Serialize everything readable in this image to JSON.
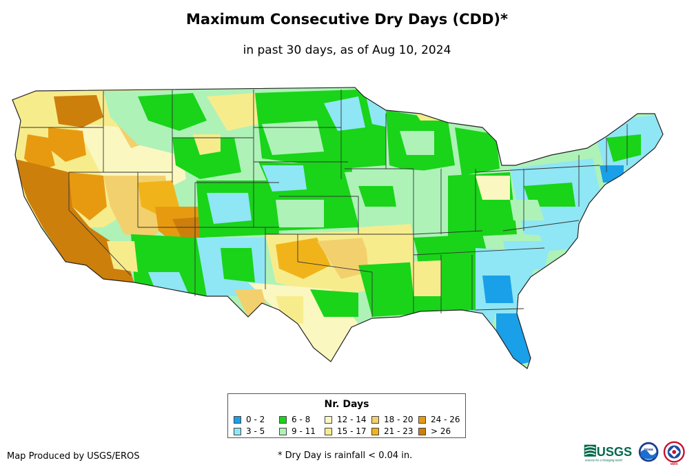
{
  "title": "Maximum Consecutive Dry Days (CDD)*",
  "subtitle": "in past 30 days, as of Aug 10, 2024",
  "legend": {
    "title": "Nr. Days",
    "items": [
      {
        "label": "0 - 2",
        "color": "#1aa0e8"
      },
      {
        "label": "3 - 5",
        "color": "#8fe6f5"
      },
      {
        "label": "6 - 8",
        "color": "#19d419"
      },
      {
        "label": "9 - 11",
        "color": "#aef2b8"
      },
      {
        "label": "12 - 14",
        "color": "#fbf7c0"
      },
      {
        "label": "15 - 17",
        "color": "#f7ec8c"
      },
      {
        "label": "18 - 20",
        "color": "#f3d06e"
      },
      {
        "label": "21 - 23",
        "color": "#f0b41a"
      },
      {
        "label": "24 - 26",
        "color": "#e79a10"
      },
      {
        "label": "> 26",
        "color": "#cd7f0c"
      }
    ]
  },
  "credit": "Map Produced by USGS/EROS",
  "footnote": "* Dry Day is rainfall < 0.04 in.",
  "logos": {
    "usgs": {
      "icon": "usgs-logo",
      "text": "USGS",
      "tagline": "science for a changing world"
    },
    "noaa": {
      "icon": "noaa-logo",
      "text": "noaa"
    },
    "nws": {
      "icon": "nws-logo",
      "text": "NWS"
    }
  }
}
